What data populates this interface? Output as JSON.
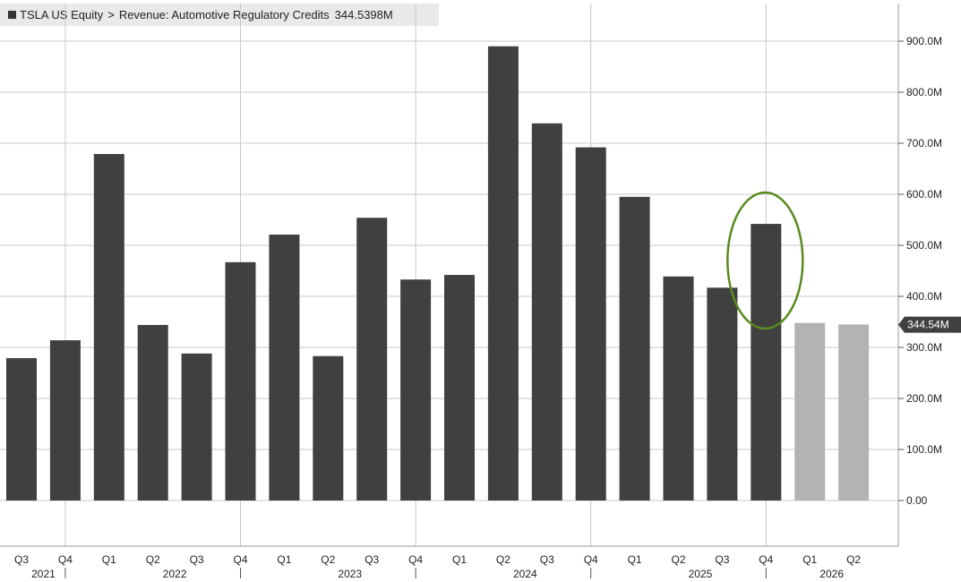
{
  "legend": {
    "ticker": "TSLA US Equity",
    "separator": ">",
    "field": "Revenue: Automotive Regulatory Credits",
    "value": "344.5398M"
  },
  "last_value_label": "344.54M",
  "colors": {
    "actual": "#404040",
    "estimate": "#b3b3b3",
    "grid": "#c8c8c8",
    "highlight_ellipse": "#5a8a1e",
    "last_value_tag": "#404040"
  },
  "chart_data": {
    "type": "bar",
    "title": "",
    "xlabel": "",
    "ylabel": "",
    "ylim": [
      -90,
      970
    ],
    "yticks": [
      0,
      100,
      200,
      300,
      400,
      500,
      600,
      700,
      800,
      900
    ],
    "ytick_labels": [
      "0.00",
      "100.0M",
      "200.0M",
      "300.0M",
      "400.0M",
      "500.0M",
      "600.0M",
      "700.0M",
      "800.0M",
      "900.0M"
    ],
    "y_axis_position": "right",
    "grid": true,
    "quarters": [
      "Q3",
      "Q4",
      "Q1",
      "Q2",
      "Q3",
      "Q4",
      "Q1",
      "Q2",
      "Q3",
      "Q4",
      "Q1",
      "Q2",
      "Q3",
      "Q4",
      "Q1",
      "Q2",
      "Q3",
      "Q4",
      "Q1",
      "Q2"
    ],
    "years": [
      {
        "label": "2021",
        "start": 0,
        "end": 1
      },
      {
        "label": "2022",
        "start": 2,
        "end": 5
      },
      {
        "label": "2023",
        "start": 6,
        "end": 9
      },
      {
        "label": "2024",
        "start": 10,
        "end": 13
      },
      {
        "label": "2025",
        "start": 14,
        "end": 17
      },
      {
        "label": "2026",
        "start": 18,
        "end": 19
      }
    ],
    "values": [
      279,
      314,
      679,
      344,
      288,
      467,
      521,
      283,
      554,
      433,
      442,
      890,
      739,
      692,
      595,
      439,
      417,
      542,
      348,
      345
    ],
    "estimate": [
      false,
      false,
      false,
      false,
      false,
      false,
      false,
      false,
      false,
      false,
      false,
      false,
      false,
      false,
      false,
      false,
      false,
      false,
      true,
      true
    ],
    "highlight_index": 17,
    "last_value": 344.54
  }
}
